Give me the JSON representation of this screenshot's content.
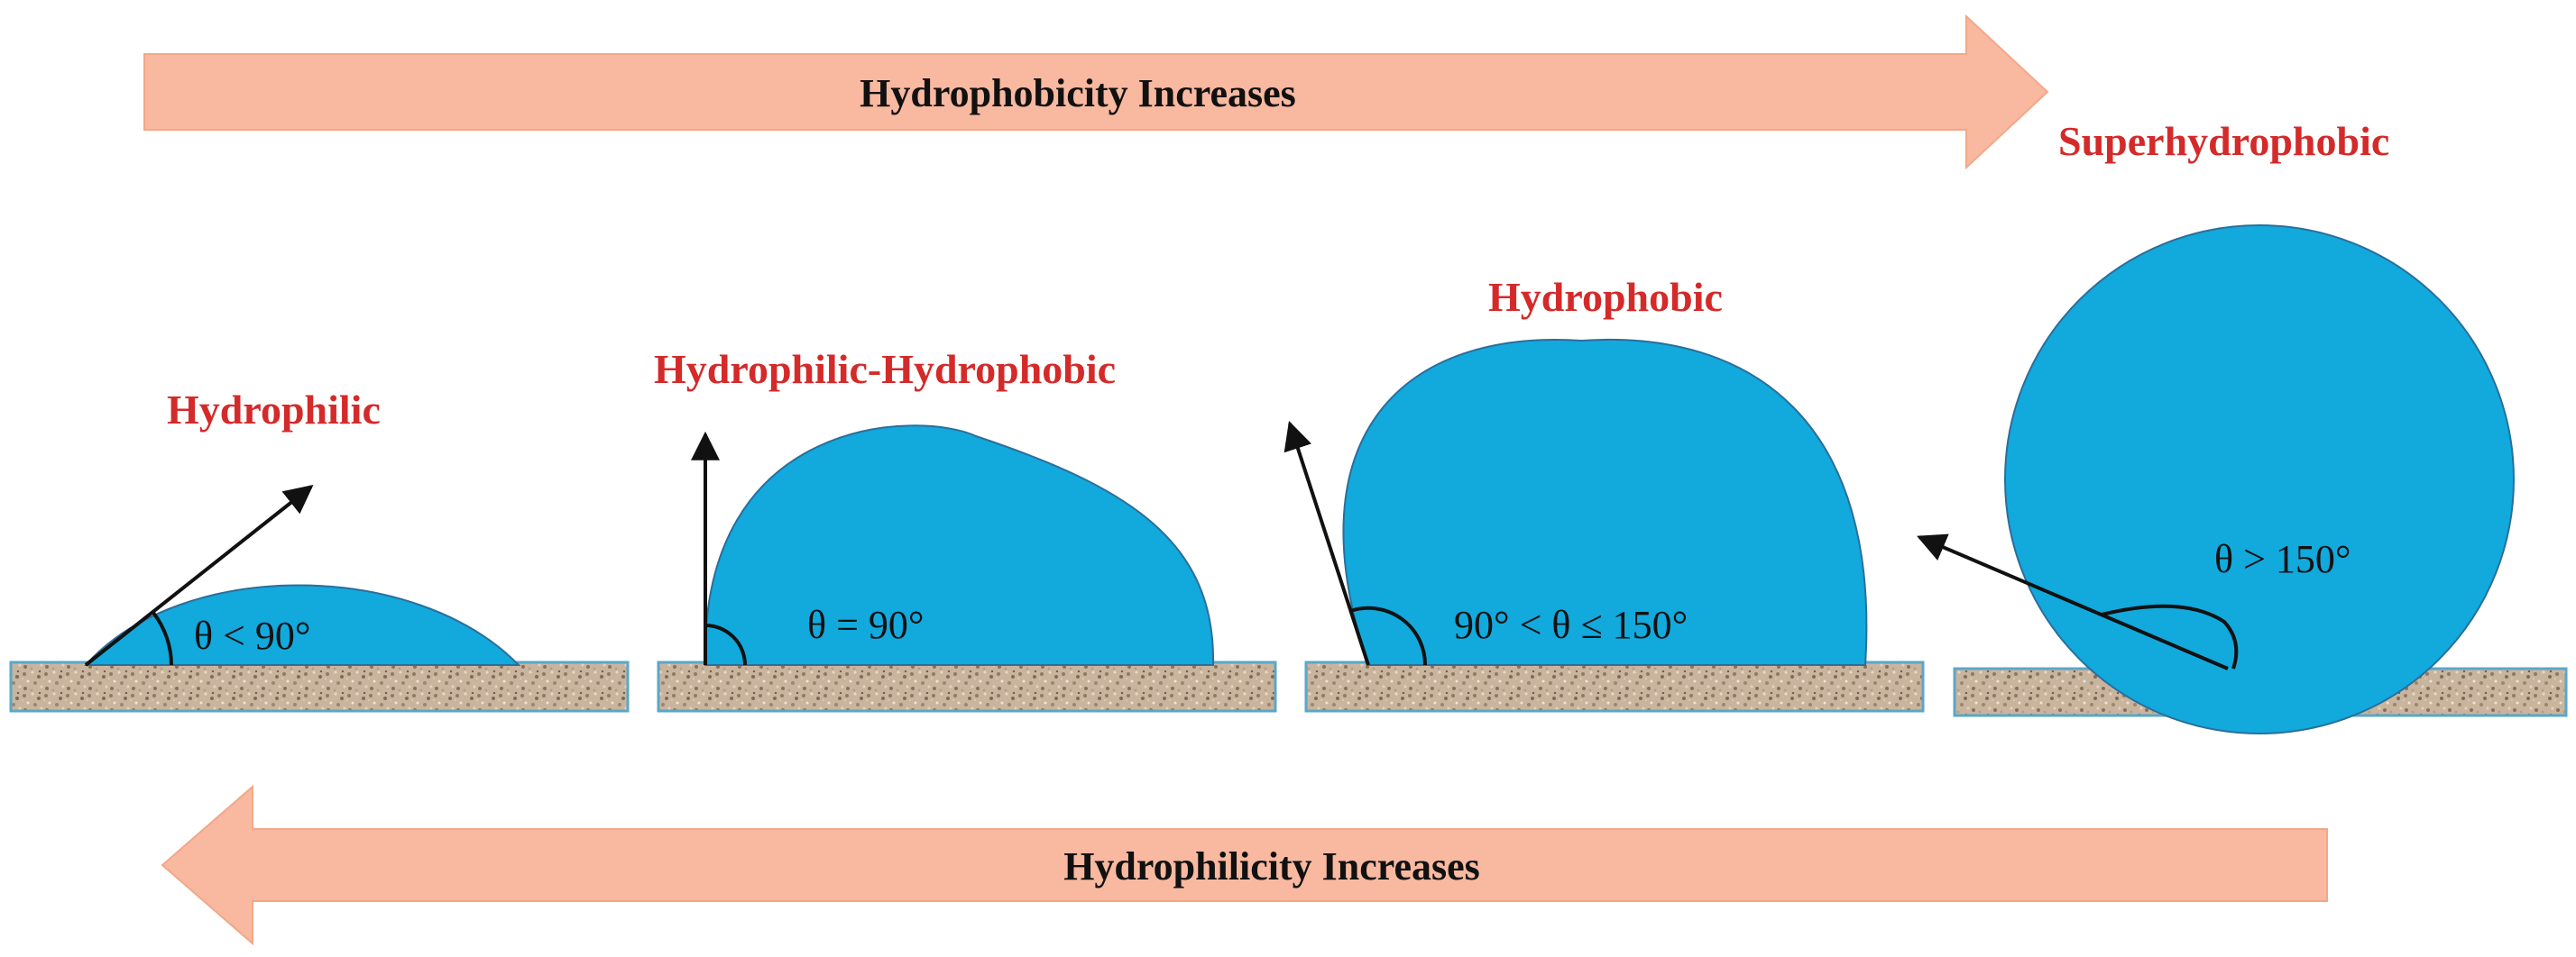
{
  "colors": {
    "arrow_fill": "#f8b9a0",
    "drop_fill": "#12a9dd",
    "drop_stroke": "#2b6e9a",
    "label_red": "#d42a2a",
    "substrate_base": "#c7b29b"
  },
  "top_arrow": {
    "label": "Hydrophobicity Increases",
    "direction": "right"
  },
  "bottom_arrow": {
    "label": "Hydrophilicity Increases",
    "direction": "left"
  },
  "panels": [
    {
      "label": "Hydrophilic",
      "angle_text": "θ < 90°"
    },
    {
      "label": "Hydrophilic-Hydrophobic",
      "angle_text": "θ = 90°"
    },
    {
      "label": "Hydrophobic",
      "angle_text": "90° < θ ≤ 150°"
    },
    {
      "label": "Superhydrophobic",
      "angle_text": "θ > 150°"
    }
  ]
}
